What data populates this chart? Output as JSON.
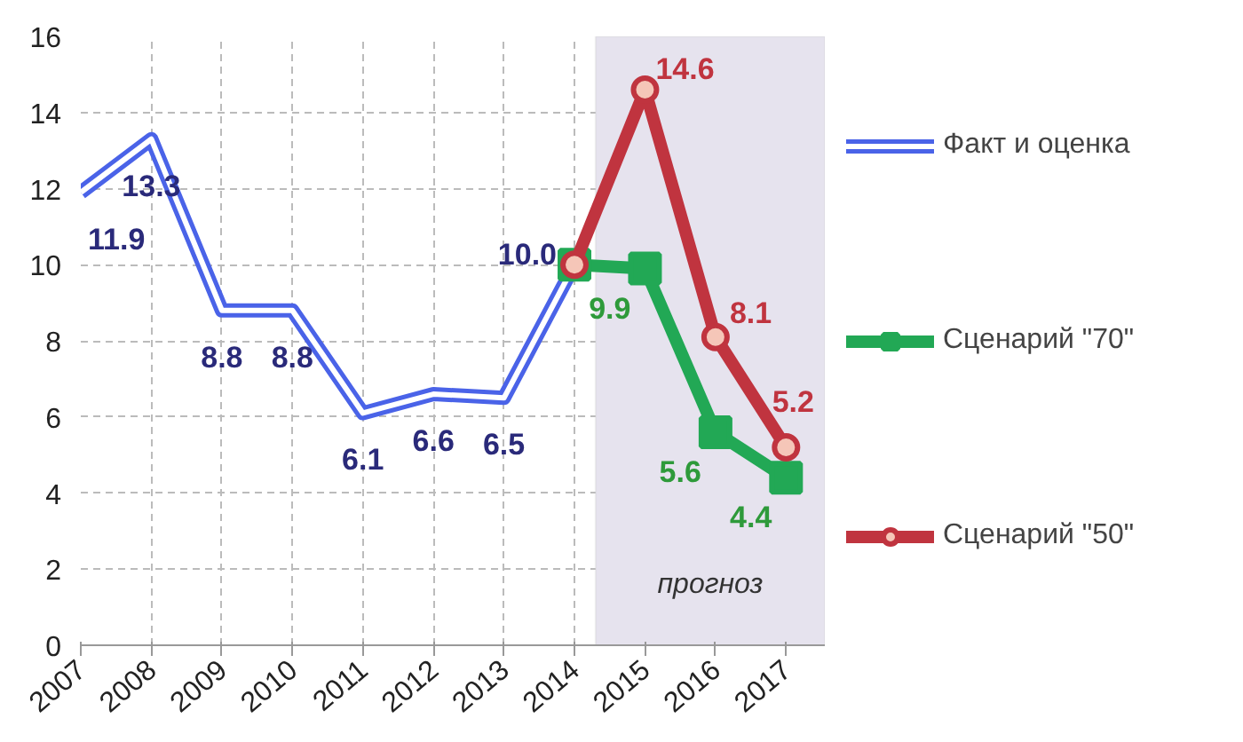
{
  "chart_data": {
    "type": "line",
    "x": [
      2007,
      2008,
      2009,
      2010,
      2011,
      2012,
      2013,
      2014,
      2015,
      2016,
      2017
    ],
    "xlim": [
      2007,
      2017.55
    ],
    "xticks": [
      2007,
      2008,
      2009,
      2010,
      2011,
      2012,
      2013,
      2014,
      2015,
      2016,
      2017
    ],
    "ylim": [
      0,
      16
    ],
    "yticks": [
      0,
      2,
      4,
      6,
      8,
      10,
      12,
      14,
      16
    ],
    "grid": true,
    "legend": "right",
    "line_style": "solid",
    "series": [
      {
        "name": "Факт и оценка",
        "color": "#4a63e8",
        "marker": "none",
        "values": [
          11.9,
          13.3,
          8.8,
          8.8,
          6.1,
          6.6,
          6.5,
          10.0,
          null,
          null,
          null
        ],
        "value_labels": [
          "11.9",
          "13.3",
          "8.8",
          "8.8",
          "6.1",
          "6.6",
          "6.5",
          "10.0",
          null,
          null,
          null
        ]
      },
      {
        "name": "Сценарий \"70\"",
        "color": "#22a855",
        "marker": "square",
        "values": [
          null,
          null,
          null,
          null,
          null,
          null,
          null,
          10.0,
          9.9,
          5.6,
          4.4
        ],
        "value_labels": [
          null,
          null,
          null,
          null,
          null,
          null,
          null,
          null,
          "9.9",
          "5.6",
          "4.4"
        ]
      },
      {
        "name": "Сценарий \"50\"",
        "color": "#c0343f",
        "marker": "circle",
        "values": [
          null,
          null,
          null,
          null,
          null,
          null,
          null,
          10.0,
          14.6,
          8.1,
          5.2
        ],
        "value_labels": [
          null,
          null,
          null,
          null,
          null,
          null,
          null,
          null,
          "14.6",
          "8.1",
          "5.2"
        ]
      }
    ],
    "bands": [
      {
        "axis": "x",
        "from": 2014.3,
        "to": 2017.55,
        "label": "прогноз",
        "color": "#e6e3ee"
      }
    ]
  }
}
